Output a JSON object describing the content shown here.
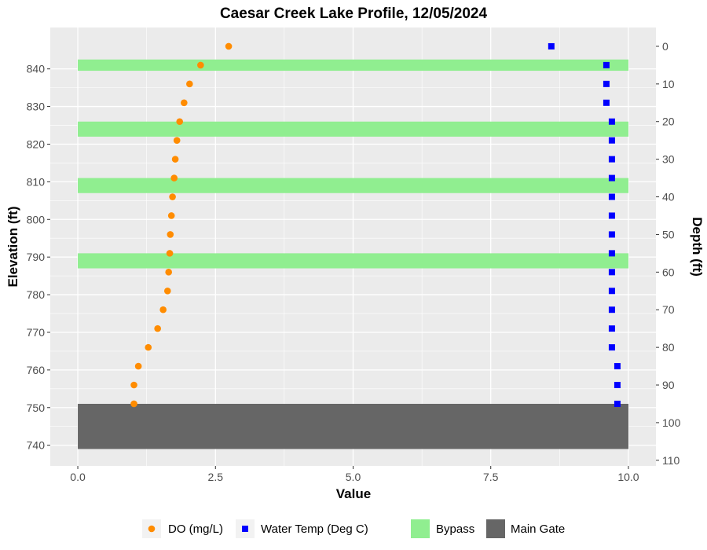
{
  "chart_data": {
    "type": "scatter",
    "title": "Caesar Creek Lake Profile,  12/05/2024",
    "xlabel": "Value",
    "ylabel": "Elevation (ft)",
    "y2label": "Depth (ft)",
    "xlim": [
      -0.5,
      10.5
    ],
    "ylim": [
      734.5,
      851
    ],
    "x_ticks": [
      0,
      2.5,
      5,
      7.5,
      10
    ],
    "x_tick_labels": [
      "0.0",
      "2.5",
      "5.0",
      "7.5",
      "10.0"
    ],
    "y_ticks": [
      740,
      750,
      760,
      770,
      780,
      790,
      800,
      810,
      820,
      830,
      840
    ],
    "y_tick_labels": [
      "740",
      "750",
      "760",
      "770",
      "780",
      "790",
      "800",
      "810",
      "820",
      "830",
      "840"
    ],
    "depth_ticks": [
      0,
      10,
      20,
      30,
      40,
      50,
      60,
      70,
      80,
      90,
      100,
      110
    ],
    "depth_tick_labels": [
      "0",
      "10",
      "20",
      "30",
      "40",
      "50",
      "60",
      "70",
      "80",
      "90",
      "100",
      "110"
    ],
    "surface_elevation": 846,
    "grid": true,
    "legend_position": "bottom",
    "colors": {
      "panel_bg": "#ebebeb",
      "grid": "#ffffff",
      "do": "#ff8c00",
      "temp": "#0000ff",
      "bypass": "#90ee90",
      "main_gate": "#666666"
    },
    "bands": [
      {
        "name": "Bypass",
        "ymin": 839.5,
        "ymax": 842.5,
        "xmin": 0,
        "xmax": 10
      },
      {
        "name": "Bypass",
        "ymin": 822,
        "ymax": 826,
        "xmin": 0,
        "xmax": 10
      },
      {
        "name": "Bypass",
        "ymin": 807,
        "ymax": 811,
        "xmin": 0,
        "xmax": 10
      },
      {
        "name": "Bypass",
        "ymin": 787,
        "ymax": 791,
        "xmin": 0,
        "xmax": 10
      },
      {
        "name": "Main Gate",
        "ymin": 739,
        "ymax": 751,
        "xmin": 0,
        "xmax": 10
      }
    ],
    "series": [
      {
        "name": "DO (mg/L)",
        "marker": "circle",
        "points": [
          {
            "x": 2.74,
            "y": 846
          },
          {
            "x": 2.23,
            "y": 841
          },
          {
            "x": 2.03,
            "y": 836
          },
          {
            "x": 1.93,
            "y": 831
          },
          {
            "x": 1.85,
            "y": 826
          },
          {
            "x": 1.8,
            "y": 821
          },
          {
            "x": 1.77,
            "y": 816
          },
          {
            "x": 1.75,
            "y": 811
          },
          {
            "x": 1.72,
            "y": 806
          },
          {
            "x": 1.7,
            "y": 801
          },
          {
            "x": 1.68,
            "y": 796
          },
          {
            "x": 1.67,
            "y": 791
          },
          {
            "x": 1.65,
            "y": 786
          },
          {
            "x": 1.63,
            "y": 781
          },
          {
            "x": 1.55,
            "y": 776
          },
          {
            "x": 1.45,
            "y": 771
          },
          {
            "x": 1.28,
            "y": 766
          },
          {
            "x": 1.1,
            "y": 761
          },
          {
            "x": 1.02,
            "y": 756
          },
          {
            "x": 1.02,
            "y": 751
          }
        ]
      },
      {
        "name": "Water Temp (Deg C)",
        "marker": "square",
        "points": [
          {
            "x": 8.6,
            "y": 846
          },
          {
            "x": 9.6,
            "y": 841
          },
          {
            "x": 9.6,
            "y": 836
          },
          {
            "x": 9.6,
            "y": 831
          },
          {
            "x": 9.7,
            "y": 826
          },
          {
            "x": 9.7,
            "y": 821
          },
          {
            "x": 9.7,
            "y": 816
          },
          {
            "x": 9.7,
            "y": 811
          },
          {
            "x": 9.7,
            "y": 806
          },
          {
            "x": 9.7,
            "y": 801
          },
          {
            "x": 9.7,
            "y": 796
          },
          {
            "x": 9.7,
            "y": 791
          },
          {
            "x": 9.7,
            "y": 786
          },
          {
            "x": 9.7,
            "y": 781
          },
          {
            "x": 9.7,
            "y": 776
          },
          {
            "x": 9.7,
            "y": 771
          },
          {
            "x": 9.7,
            "y": 766
          },
          {
            "x": 9.8,
            "y": 761
          },
          {
            "x": 9.8,
            "y": 756
          },
          {
            "x": 9.8,
            "y": 751
          }
        ]
      }
    ],
    "legend": [
      {
        "label": "DO (mg/L)",
        "kind": "point-circle",
        "color": "#ff8c00"
      },
      {
        "label": "Water Temp (Deg C)",
        "kind": "point-square",
        "color": "#0000ff"
      },
      {
        "label": "Bypass",
        "kind": "fill",
        "color": "#90ee90"
      },
      {
        "label": "Main Gate",
        "kind": "fill",
        "color": "#666666"
      }
    ]
  }
}
